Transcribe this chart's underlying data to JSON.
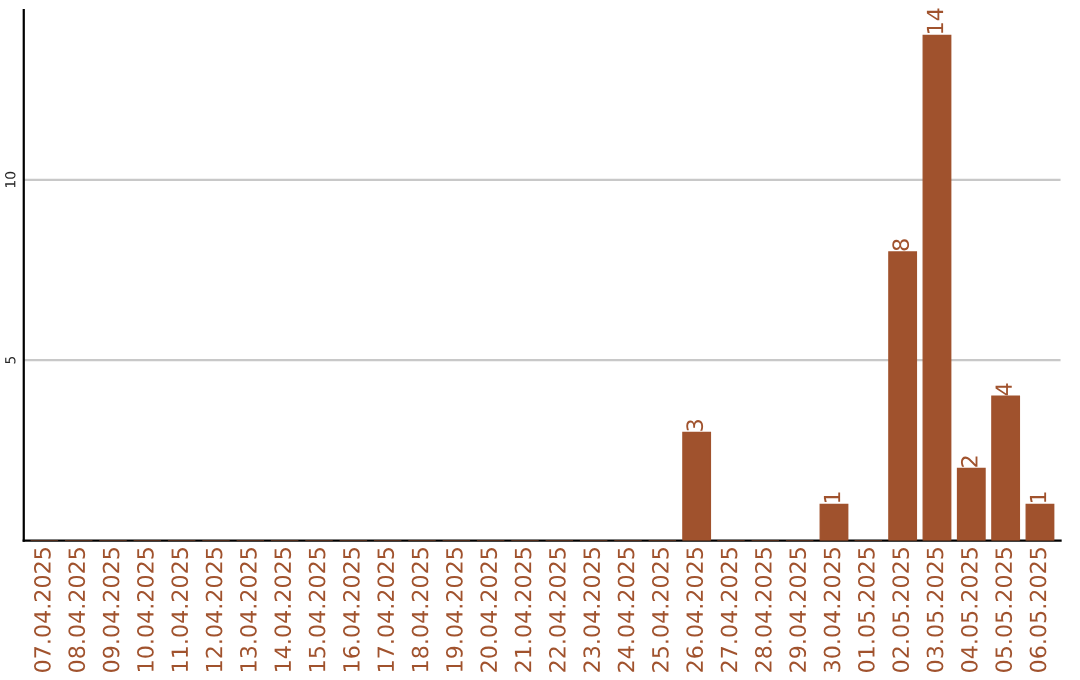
{
  "chart_data": {
    "type": "bar",
    "categories": [
      "07.04.2025",
      "08.04.2025",
      "09.04.2025",
      "10.04.2025",
      "11.04.2025",
      "12.04.2025",
      "13.04.2025",
      "14.04.2025",
      "15.04.2025",
      "16.04.2025",
      "17.04.2025",
      "18.04.2025",
      "19.04.2025",
      "20.04.2025",
      "21.04.2025",
      "22.04.2025",
      "23.04.2025",
      "24.04.2025",
      "25.04.2025",
      "26.04.2025",
      "27.04.2025",
      "28.04.2025",
      "29.04.2025",
      "30.04.2025",
      "01.05.2025",
      "02.05.2025",
      "03.05.2025",
      "04.05.2025",
      "05.05.2025",
      "06.05.2025"
    ],
    "values": [
      0,
      0,
      0,
      0,
      0,
      0,
      0,
      0,
      0,
      0,
      0,
      0,
      0,
      0,
      0,
      0,
      0,
      0,
      0,
      3,
      0,
      0,
      0,
      1,
      0,
      8,
      14,
      2,
      4,
      1
    ],
    "value_labels": [
      null,
      null,
      null,
      null,
      null,
      null,
      null,
      null,
      null,
      null,
      null,
      null,
      null,
      null,
      null,
      null,
      null,
      null,
      null,
      "3",
      null,
      null,
      null,
      "1",
      null,
      "8",
      "14",
      "2",
      "4",
      "1"
    ],
    "color": "#a0522d",
    "ylim": [
      0,
      14.7
    ],
    "yticks": [
      5,
      10
    ],
    "grid": "y",
    "legend": false
  }
}
